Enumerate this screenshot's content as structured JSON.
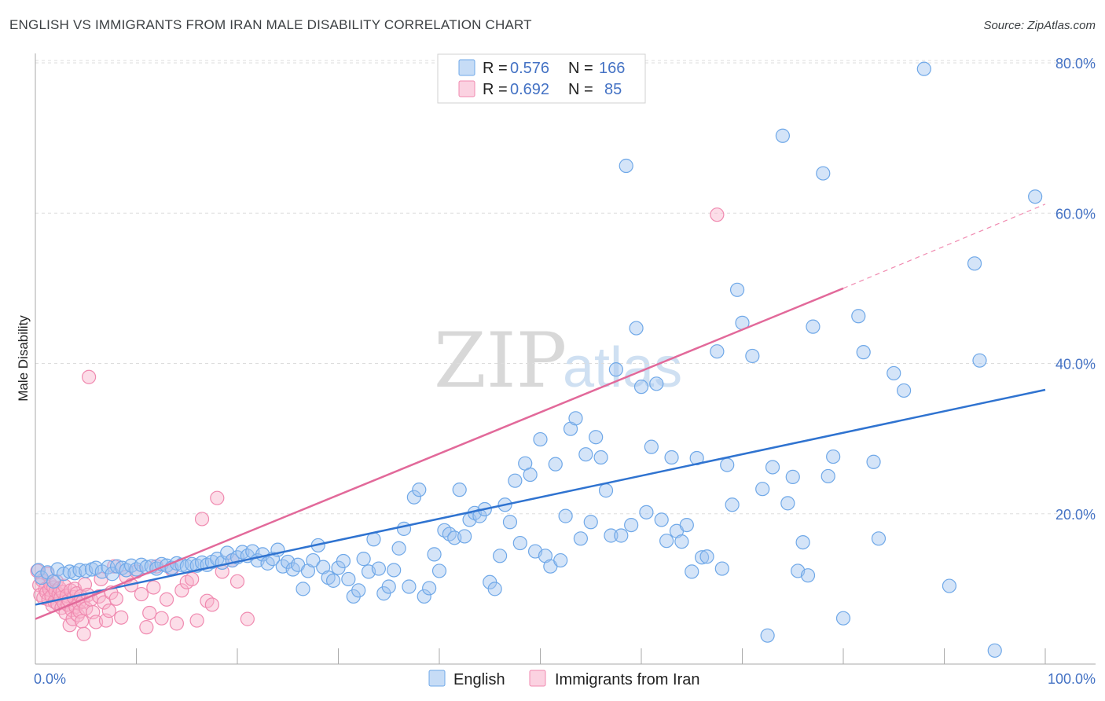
{
  "title": "ENGLISH VS IMMIGRANTS FROM IRAN MALE DISABILITY CORRELATION CHART",
  "source": "Source: ZipAtlas.com",
  "watermark": {
    "zip": "ZIP",
    "atlas": "atlas"
  },
  "colors": {
    "english": "#6fa8e8",
    "english_fill": "rgba(160,196,240,0.45)",
    "english_line": "#2f73d0",
    "iran": "#f08ab0",
    "iran_fill": "rgba(248,180,205,0.45)",
    "iran_line": "#e2699a",
    "tick": "#4472c4",
    "grid": "#dddddd"
  },
  "legend": {
    "rows": [
      {
        "r_label": "R =",
        "r_value": "0.576",
        "n_label": "N =",
        "n_value": "166"
      },
      {
        "r_label": "R =",
        "r_value": "0.692",
        "n_label": "N =",
        "n_value": "85"
      }
    ]
  },
  "bottom_legend": [
    "English",
    "Immigrants from Iran"
  ],
  "chart_data": {
    "type": "scatter",
    "title": "ENGLISH VS IMMIGRANTS FROM IRAN MALE DISABILITY CORRELATION CHART",
    "xlabel": "",
    "ylabel": "Male Disability",
    "xlim": [
      0,
      100
    ],
    "ylim": [
      0,
      80
    ],
    "x_tick_labels": [
      "0.0%",
      "100.0%"
    ],
    "y_tick_labels": [
      "20.0%",
      "40.0%",
      "60.0%",
      "80.0%"
    ],
    "y_ticks": [
      20,
      40,
      60,
      80
    ],
    "grid": true,
    "legend_position": "top-center",
    "series": [
      {
        "name": "English",
        "R": 0.576,
        "N": 166,
        "trend": {
          "x": [
            0,
            100
          ],
          "y": [
            7.9,
            36.5
          ]
        },
        "points": [
          [
            0.3,
            12.5
          ],
          [
            0.6,
            11.5
          ],
          [
            1.2,
            12.2
          ],
          [
            1.8,
            11.0
          ],
          [
            2.2,
            12.6
          ],
          [
            2.8,
            12.0
          ],
          [
            3.4,
            12.3
          ],
          [
            3.9,
            12.1
          ],
          [
            4.4,
            12.5
          ],
          [
            5.0,
            12.4
          ],
          [
            5.6,
            12.6
          ],
          [
            6.0,
            12.8
          ],
          [
            6.6,
            12.3
          ],
          [
            7.2,
            12.9
          ],
          [
            7.6,
            12.0
          ],
          [
            8.1,
            13.0
          ],
          [
            8.6,
            12.8
          ],
          [
            9.0,
            12.5
          ],
          [
            9.5,
            13.1
          ],
          [
            10.0,
            12.6
          ],
          [
            10.5,
            13.2
          ],
          [
            11.0,
            12.9
          ],
          [
            11.5,
            13.0
          ],
          [
            12.0,
            12.7
          ],
          [
            12.5,
            13.3
          ],
          [
            13.0,
            13.1
          ],
          [
            13.5,
            12.8
          ],
          [
            14.0,
            13.4
          ],
          [
            14.5,
            13.2
          ],
          [
            15.0,
            13.0
          ],
          [
            15.5,
            13.3
          ],
          [
            16.0,
            13.1
          ],
          [
            16.5,
            13.5
          ],
          [
            17.0,
            13.2
          ],
          [
            17.5,
            13.6
          ],
          [
            18.0,
            14.0
          ],
          [
            18.5,
            13.5
          ],
          [
            19.0,
            14.8
          ],
          [
            19.5,
            13.8
          ],
          [
            20.0,
            14.2
          ],
          [
            20.5,
            14.9
          ],
          [
            21.0,
            14.4
          ],
          [
            21.5,
            15.0
          ],
          [
            22.0,
            13.8
          ],
          [
            22.5,
            14.6
          ],
          [
            23.0,
            13.4
          ],
          [
            23.5,
            14.0
          ],
          [
            24.0,
            15.2
          ],
          [
            24.5,
            13.0
          ],
          [
            25.0,
            13.6
          ],
          [
            25.5,
            12.6
          ],
          [
            26.0,
            13.2
          ],
          [
            26.5,
            10.0
          ],
          [
            27.0,
            12.4
          ],
          [
            27.5,
            13.8
          ],
          [
            28.0,
            15.8
          ],
          [
            28.5,
            12.9
          ],
          [
            29.0,
            11.5
          ],
          [
            29.5,
            11.1
          ],
          [
            30.0,
            12.8
          ],
          [
            30.5,
            13.7
          ],
          [
            31.0,
            11.3
          ],
          [
            31.5,
            9.0
          ],
          [
            32.0,
            9.8
          ],
          [
            32.5,
            14.0
          ],
          [
            33.0,
            12.3
          ],
          [
            33.5,
            16.6
          ],
          [
            34.0,
            12.7
          ],
          [
            34.5,
            9.4
          ],
          [
            35.0,
            10.3
          ],
          [
            35.5,
            12.5
          ],
          [
            36.0,
            15.4
          ],
          [
            36.5,
            18.0
          ],
          [
            37.0,
            10.3
          ],
          [
            37.5,
            22.2
          ],
          [
            38.0,
            23.2
          ],
          [
            38.5,
            9.0
          ],
          [
            39.0,
            10.1
          ],
          [
            39.5,
            14.6
          ],
          [
            40.0,
            12.4
          ],
          [
            40.5,
            17.8
          ],
          [
            41.0,
            17.3
          ],
          [
            41.5,
            16.8
          ],
          [
            42.0,
            23.2
          ],
          [
            42.5,
            17.0
          ],
          [
            43.0,
            19.2
          ],
          [
            43.5,
            20.1
          ],
          [
            44.0,
            19.7
          ],
          [
            44.5,
            20.6
          ],
          [
            45.0,
            10.9
          ],
          [
            45.5,
            10.0
          ],
          [
            46.0,
            14.4
          ],
          [
            46.5,
            21.2
          ],
          [
            47.0,
            18.9
          ],
          [
            47.5,
            24.4
          ],
          [
            48.0,
            16.1
          ],
          [
            48.5,
            26.7
          ],
          [
            49.0,
            25.2
          ],
          [
            49.5,
            15.0
          ],
          [
            50.0,
            29.9
          ],
          [
            50.5,
            14.4
          ],
          [
            51.0,
            13.0
          ],
          [
            51.5,
            26.6
          ],
          [
            52.0,
            13.8
          ],
          [
            52.5,
            19.7
          ],
          [
            53.0,
            31.3
          ],
          [
            53.5,
            32.7
          ],
          [
            54.0,
            16.7
          ],
          [
            54.5,
            27.9
          ],
          [
            55.0,
            18.9
          ],
          [
            55.5,
            30.2
          ],
          [
            56.0,
            27.5
          ],
          [
            56.5,
            23.1
          ],
          [
            57.0,
            17.1
          ],
          [
            57.5,
            39.2
          ],
          [
            58.0,
            17.1
          ],
          [
            58.5,
            66.3
          ],
          [
            59.0,
            18.5
          ],
          [
            59.5,
            44.7
          ],
          [
            60.0,
            36.9
          ],
          [
            60.5,
            20.2
          ],
          [
            61.0,
            28.9
          ],
          [
            61.5,
            37.3
          ],
          [
            62.0,
            19.2
          ],
          [
            62.5,
            16.4
          ],
          [
            63.0,
            27.5
          ],
          [
            63.5,
            17.7
          ],
          [
            64.0,
            16.3
          ],
          [
            64.5,
            18.5
          ],
          [
            65.0,
            12.3
          ],
          [
            65.5,
            27.4
          ],
          [
            66.0,
            14.2
          ],
          [
            66.5,
            14.3
          ],
          [
            67.5,
            41.6
          ],
          [
            68.0,
            12.7
          ],
          [
            68.5,
            26.5
          ],
          [
            69.0,
            21.2
          ],
          [
            69.5,
            49.8
          ],
          [
            70.0,
            45.4
          ],
          [
            71.0,
            41.0
          ],
          [
            72.0,
            23.3
          ],
          [
            72.5,
            3.8
          ],
          [
            73.0,
            26.2
          ],
          [
            74.0,
            70.3
          ],
          [
            74.5,
            21.4
          ],
          [
            75.0,
            24.9
          ],
          [
            75.5,
            12.4
          ],
          [
            76.0,
            16.2
          ],
          [
            76.5,
            11.8
          ],
          [
            77.0,
            44.9
          ],
          [
            78.0,
            65.3
          ],
          [
            78.5,
            25.0
          ],
          [
            79.0,
            27.6
          ],
          [
            80.0,
            6.1
          ],
          [
            81.5,
            46.3
          ],
          [
            82.0,
            41.5
          ],
          [
            83.0,
            26.9
          ],
          [
            83.5,
            16.7
          ],
          [
            85.0,
            38.7
          ],
          [
            86.0,
            36.4
          ],
          [
            88.0,
            79.2
          ],
          [
            90.5,
            10.4
          ],
          [
            93.0,
            53.3
          ],
          [
            93.5,
            40.4
          ],
          [
            95.0,
            1.8
          ],
          [
            99.0,
            62.2
          ]
        ]
      },
      {
        "name": "Immigrants from Iran",
        "R": 0.692,
        "N": 85,
        "trend": {
          "x": [
            0,
            80
          ],
          "y": [
            6.0,
            50.0
          ]
        },
        "trend_dashed": {
          "x": [
            80,
            100
          ],
          "y": [
            50.0,
            61.2
          ]
        },
        "points": [
          [
            0.2,
            12.4
          ],
          [
            0.4,
            10.5
          ],
          [
            0.5,
            9.2
          ],
          [
            0.7,
            11.1
          ],
          [
            0.8,
            8.8
          ],
          [
            1.0,
            10.0
          ],
          [
            1.1,
            9.5
          ],
          [
            1.2,
            12.0
          ],
          [
            1.3,
            8.6
          ],
          [
            1.4,
            9.9
          ],
          [
            1.5,
            10.6
          ],
          [
            1.6,
            9.0
          ],
          [
            1.7,
            7.8
          ],
          [
            1.8,
            10.2
          ],
          [
            1.9,
            8.3
          ],
          [
            2.0,
            9.7
          ],
          [
            2.1,
            11.0
          ],
          [
            2.2,
            8.0
          ],
          [
            2.3,
            9.3
          ],
          [
            2.4,
            10.1
          ],
          [
            2.5,
            8.8
          ],
          [
            2.6,
            7.5
          ],
          [
            2.7,
            9.6
          ],
          [
            2.8,
            8.2
          ],
          [
            2.9,
            10.4
          ],
          [
            3.0,
            6.8
          ],
          [
            3.1,
            9.1
          ],
          [
            3.2,
            7.9
          ],
          [
            3.3,
            8.5
          ],
          [
            3.4,
            5.2
          ],
          [
            3.5,
            9.8
          ],
          [
            3.6,
            7.2
          ],
          [
            3.7,
            6.0
          ],
          [
            3.8,
            8.9
          ],
          [
            3.9,
            10.0
          ],
          [
            4.0,
            7.6
          ],
          [
            4.1,
            9.4
          ],
          [
            4.2,
            6.5
          ],
          [
            4.3,
            8.1
          ],
          [
            4.4,
            7.0
          ],
          [
            4.5,
            9.0
          ],
          [
            4.6,
            5.7
          ],
          [
            4.7,
            8.3
          ],
          [
            4.8,
            4.0
          ],
          [
            4.9,
            10.6
          ],
          [
            5.0,
            7.4
          ],
          [
            5.2,
            9.2
          ],
          [
            5.3,
            38.2
          ],
          [
            5.5,
            8.6
          ],
          [
            5.7,
            6.9
          ],
          [
            6.0,
            5.6
          ],
          [
            6.3,
            9.0
          ],
          [
            6.5,
            11.3
          ],
          [
            6.8,
            8.2
          ],
          [
            7.0,
            5.8
          ],
          [
            7.3,
            7.1
          ],
          [
            7.5,
            9.5
          ],
          [
            7.8,
            13.0
          ],
          [
            8.0,
            8.7
          ],
          [
            8.5,
            6.2
          ],
          [
            9.0,
            11.6
          ],
          [
            9.5,
            10.5
          ],
          [
            10.0,
            12.3
          ],
          [
            10.5,
            9.3
          ],
          [
            11.0,
            4.9
          ],
          [
            11.3,
            6.8
          ],
          [
            11.7,
            10.2
          ],
          [
            12.0,
            13.0
          ],
          [
            12.5,
            6.1
          ],
          [
            13.0,
            8.6
          ],
          [
            13.5,
            12.6
          ],
          [
            14.0,
            5.4
          ],
          [
            14.5,
            9.8
          ],
          [
            15.0,
            10.9
          ],
          [
            15.5,
            11.3
          ],
          [
            16.0,
            5.8
          ],
          [
            16.5,
            19.3
          ],
          [
            17.0,
            8.4
          ],
          [
            17.5,
            7.9
          ],
          [
            18.0,
            22.1
          ],
          [
            18.5,
            12.3
          ],
          [
            19.5,
            13.8
          ],
          [
            20.0,
            11.0
          ],
          [
            21.0,
            6.0
          ],
          [
            67.5,
            59.8
          ]
        ]
      }
    ]
  }
}
